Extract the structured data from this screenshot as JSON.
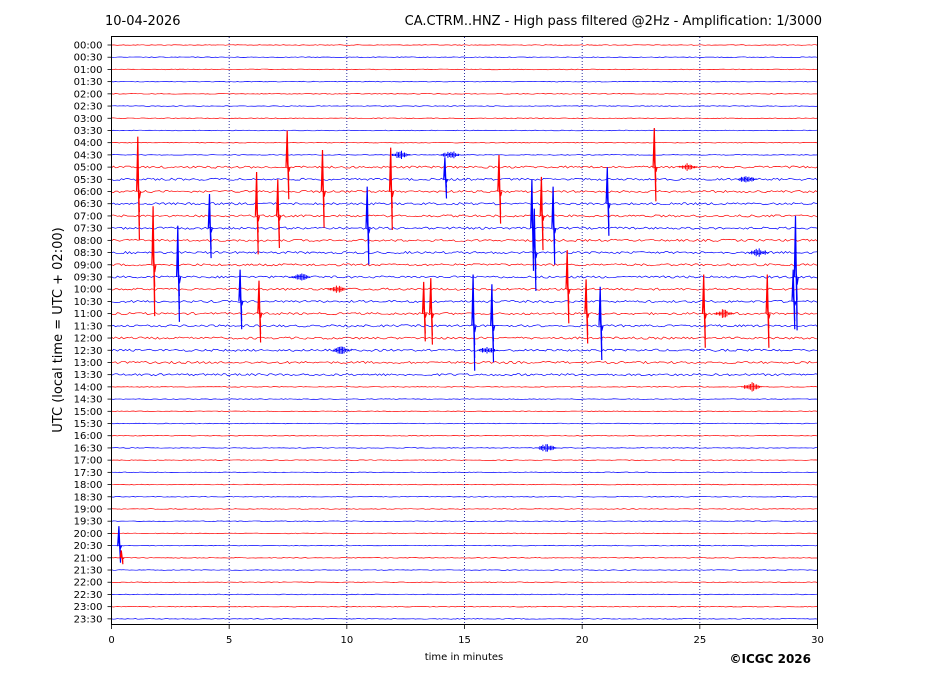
{
  "header": {
    "date": "10-04-2026",
    "title": "CA.CTRM..HNZ - High pass filtered @2Hz - Amplification: 1/3000"
  },
  "footer": {
    "copyright": "©ICGC 2026"
  },
  "colors": {
    "trace_a": "#ff0000",
    "trace_b": "#0000ff",
    "grid": "#00008b"
  },
  "chart_data": {
    "type": "line",
    "title": "CA.CTRM..HNZ - High pass filtered @2Hz - Amplification: 1/3000",
    "xlabel": "time in minutes",
    "ylabel": "UTC (local time = UTC + 02:00)",
    "xlim": [
      0,
      30
    ],
    "x_ticks": [
      0,
      5,
      10,
      15,
      20,
      25,
      30
    ],
    "vertical_gridlines_at": [
      5,
      10,
      15,
      20,
      25
    ],
    "grid": "vertical dotted",
    "row_labels": [
      "00:00",
      "00:30",
      "01:00",
      "01:30",
      "02:00",
      "02:30",
      "03:00",
      "03:30",
      "04:00",
      "04:30",
      "05:00",
      "05:30",
      "06:00",
      "06:30",
      "07:00",
      "07:30",
      "08:00",
      "08:30",
      "09:00",
      "09:30",
      "10:00",
      "10:30",
      "11:00",
      "11:30",
      "12:00",
      "12:30",
      "13:00",
      "13:30",
      "14:00",
      "14:30",
      "15:00",
      "15:30",
      "16:00",
      "16:30",
      "17:00",
      "17:30",
      "18:00",
      "18:30",
      "19:00",
      "19:30",
      "20:00",
      "20:30",
      "21:00",
      "21:30",
      "22:00",
      "22:30",
      "23:00",
      "23:30"
    ],
    "row_colors_cycle": [
      "red",
      "blue"
    ],
    "active_window_rows": [
      "05:00",
      "13:30"
    ],
    "spikes": [
      {
        "row": "06:00",
        "minute": 1.15,
        "amplitude": 4.5
      },
      {
        "row": "09:00",
        "minute": 1.8,
        "amplitude": 4.8
      },
      {
        "row": "09:30",
        "minute": 2.85,
        "amplitude": 4.2
      },
      {
        "row": "07:30",
        "minute": 4.2,
        "amplitude": 2.8
      },
      {
        "row": "10:30",
        "minute": 5.5,
        "amplitude": 2.6
      },
      {
        "row": "07:00",
        "minute": 6.2,
        "amplitude": 3.6
      },
      {
        "row": "11:00",
        "minute": 6.3,
        "amplitude": 2.7
      },
      {
        "row": "07:00",
        "minute": 7.1,
        "amplitude": 3.0
      },
      {
        "row": "05:00",
        "minute": 7.5,
        "amplitude": 3.0
      },
      {
        "row": "06:00",
        "minute": 9.0,
        "amplitude": 3.4
      },
      {
        "row": "07:30",
        "minute": 10.9,
        "amplitude": 3.4
      },
      {
        "row": "06:00",
        "minute": 11.9,
        "amplitude": 3.6
      },
      {
        "row": "05:30",
        "minute": 14.2,
        "amplitude": 1.8
      },
      {
        "row": "11:00",
        "minute": 13.3,
        "amplitude": 2.6
      },
      {
        "row": "11:00",
        "minute": 13.6,
        "amplitude": 2.9
      },
      {
        "row": "11:30",
        "minute": 15.4,
        "amplitude": 4.2
      },
      {
        "row": "11:30",
        "minute": 16.2,
        "amplitude": 3.4
      },
      {
        "row": "06:00",
        "minute": 16.5,
        "amplitude": 3.0
      },
      {
        "row": "07:30",
        "minute": 17.9,
        "amplitude": 4.0
      },
      {
        "row": "08:30",
        "minute": 18.0,
        "amplitude": 3.6
      },
      {
        "row": "07:00",
        "minute": 18.3,
        "amplitude": 3.2
      },
      {
        "row": "07:30",
        "minute": 18.8,
        "amplitude": 3.4
      },
      {
        "row": "10:00",
        "minute": 19.4,
        "amplitude": 3.2
      },
      {
        "row": "11:00",
        "minute": 20.2,
        "amplitude": 2.8
      },
      {
        "row": "11:30",
        "minute": 20.8,
        "amplitude": 3.2
      },
      {
        "row": "06:30",
        "minute": 21.1,
        "amplitude": 3.0
      },
      {
        "row": "05:00",
        "minute": 23.1,
        "amplitude": 3.2
      },
      {
        "row": "11:00",
        "minute": 25.2,
        "amplitude": 3.2
      },
      {
        "row": "11:00",
        "minute": 27.9,
        "amplitude": 3.2
      },
      {
        "row": "09:30",
        "minute": 29.1,
        "amplitude": 5.0
      },
      {
        "row": "10:30",
        "minute": 29.0,
        "amplitude": 2.6
      },
      {
        "row": "20:30",
        "minute": 0.35,
        "amplitude": 1.6
      },
      {
        "row": "21:00",
        "minute": 0.45,
        "amplitude": 0.6
      }
    ],
    "noise_bursts": [
      {
        "row": "04:30",
        "minute": 12.3
      },
      {
        "row": "04:30",
        "minute": 14.4
      },
      {
        "row": "05:00",
        "minute": 24.5
      },
      {
        "row": "05:30",
        "minute": 27.0
      },
      {
        "row": "08:30",
        "minute": 27.5
      },
      {
        "row": "09:30",
        "minute": 8.0
      },
      {
        "row": "10:00",
        "minute": 9.6
      },
      {
        "row": "11:00",
        "minute": 26.0
      },
      {
        "row": "12:30",
        "minute": 9.8
      },
      {
        "row": "12:30",
        "minute": 16.0
      },
      {
        "row": "14:00",
        "minute": 27.2
      },
      {
        "row": "16:30",
        "minute": 18.5
      }
    ]
  }
}
